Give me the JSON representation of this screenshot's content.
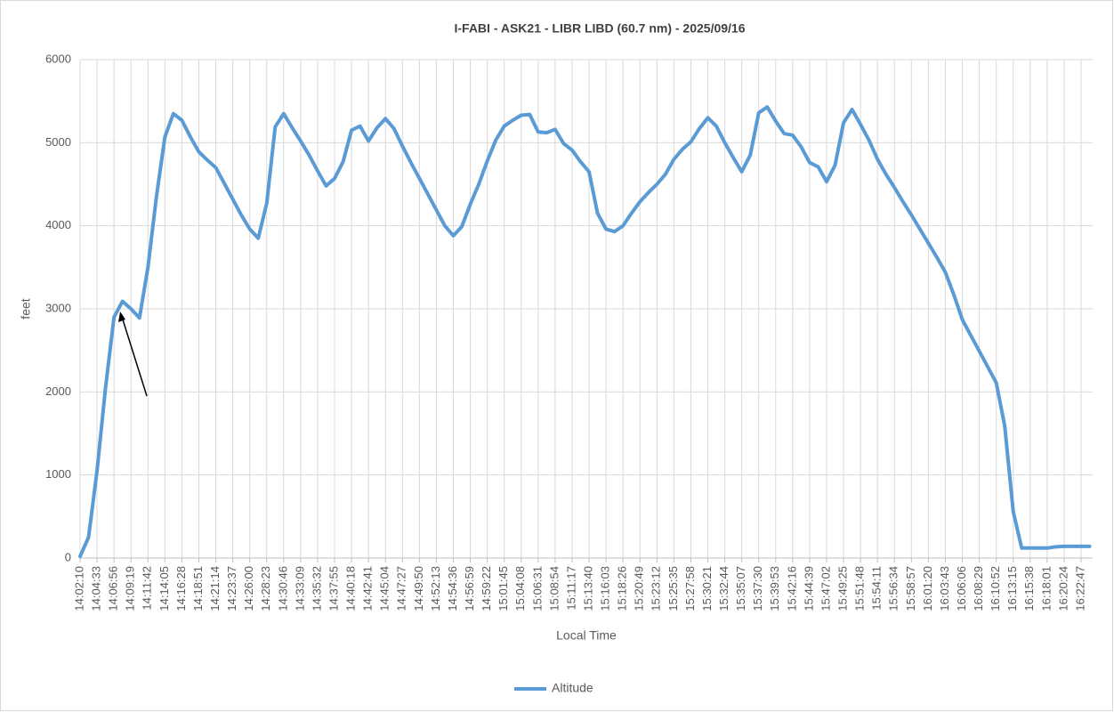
{
  "chart_data": {
    "type": "line",
    "title": "I-FABI - ASK21 - LIBR LIBD (60.7 nm) - 2025/09/16",
    "x_label": "Local Time",
    "y_label": "feet",
    "categories": [
      "14:02:10",
      null,
      "14:04:33",
      null,
      "14:06:56",
      null,
      "14:09:19",
      null,
      "14:11:42",
      null,
      "14:14:05",
      null,
      "14:16:28",
      null,
      "14:18:51",
      null,
      "14:21:14",
      null,
      "14:23:37",
      null,
      "14:26:00",
      null,
      "14:28:23",
      null,
      "14:30:46",
      null,
      "14:33:09",
      null,
      "14:35:32",
      null,
      "14:37:55",
      null,
      "14:40:18",
      null,
      "14:42:41",
      null,
      "14:45:04",
      null,
      "14:47:27",
      null,
      "14:49:50",
      null,
      "14:52:13",
      null,
      "14:54:36",
      null,
      "14:56:59",
      null,
      "14:59:22",
      null,
      "15:01:45",
      null,
      "15:04:08",
      null,
      "15:06:31",
      null,
      "15:08:54",
      null,
      "15:11:17",
      null,
      "15:13:40",
      null,
      "15:16:03",
      null,
      "15:18:26",
      null,
      "15:20:49",
      null,
      "15:23:12",
      null,
      "15:25:35",
      null,
      "15:27:58",
      null,
      "15:30:21",
      null,
      "15:32:44",
      null,
      "15:35:07",
      null,
      "15:37:30",
      null,
      "15:39:53",
      null,
      "15:42:16",
      null,
      "15:44:39",
      null,
      "15:47:02",
      null,
      "15:49:25",
      null,
      "15:51:48",
      null,
      "15:54:11",
      null,
      "15:56:34",
      null,
      "15:58:57",
      null,
      "16:01:20",
      null,
      "16:03:43",
      null,
      "16:06:06",
      null,
      "16:08:29",
      null,
      "16:10:52",
      null,
      "16:13:15",
      null,
      "16:15:38",
      null,
      "16:18:01",
      null,
      "16:20:24",
      null,
      "16:22:47",
      null
    ],
    "series": [
      {
        "name": "Altitude",
        "color": "#5b9bd5",
        "values": [
          20,
          250,
          1050,
          2050,
          2900,
          3090,
          3000,
          2890,
          3500,
          4350,
          5070,
          5350,
          5270,
          5070,
          4890,
          4790,
          4700,
          4510,
          4320,
          4130,
          3960,
          3850,
          4270,
          5190,
          5350,
          5180,
          5020,
          4850,
          4660,
          4480,
          4570,
          4770,
          5150,
          5200,
          5020,
          5180,
          5290,
          5170,
          4960,
          4760,
          4570,
          4380,
          4190,
          4000,
          3880,
          3990,
          4260,
          4500,
          4780,
          5030,
          5200,
          5270,
          5330,
          5340,
          5130,
          5120,
          5160,
          4990,
          4910,
          4770,
          4650,
          4150,
          3960,
          3930,
          4000,
          4150,
          4290,
          4400,
          4500,
          4620,
          4800,
          4920,
          5010,
          5170,
          5300,
          5200,
          5000,
          4820,
          4650,
          4850,
          5360,
          5430,
          5260,
          5110,
          5090,
          4950,
          4760,
          4710,
          4530,
          4730,
          5240,
          5400,
          5220,
          5030,
          4800,
          4620,
          4460,
          4290,
          4130,
          3960,
          3790,
          3620,
          3440,
          3170,
          2870,
          2680,
          2490,
          2300,
          2110,
          1590,
          560,
          120,
          120,
          120,
          120,
          135,
          140,
          140,
          140,
          140
        ]
      }
    ],
    "ylim": [
      0,
      6000
    ],
    "yticks": [
      0,
      1000,
      2000,
      3000,
      4000,
      5000,
      6000
    ],
    "grid": true,
    "legend": "bottom"
  }
}
